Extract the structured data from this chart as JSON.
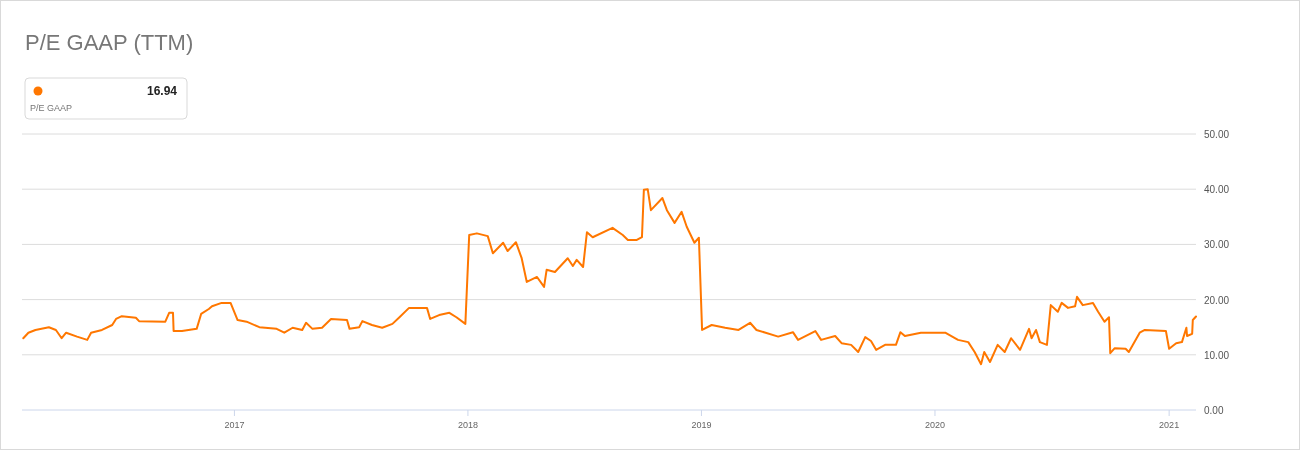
{
  "chart_data": {
    "type": "line",
    "title": "P/E GAAP (TTM)",
    "annotations": [
      "16.94"
    ],
    "xlim": [
      "2016-02-04",
      "2021-02-12"
    ],
    "xticks": [
      "2017",
      "2018",
      "2019",
      "2020",
      "2021"
    ],
    "ylim": [
      0,
      50
    ],
    "yticks": [
      {
        "value": 0,
        "label": "0.00"
      },
      {
        "value": 10,
        "label": "10.00"
      },
      {
        "value": 20,
        "label": "20.00"
      },
      {
        "value": 30,
        "label": "30.00"
      },
      {
        "value": 40,
        "label": "40.00"
      },
      {
        "value": 50,
        "label": "50.00"
      }
    ],
    "grid": "y",
    "legend": "top left",
    "marker": "none",
    "line_style": "solid",
    "series": [
      {
        "name": "P/E GAAP",
        "color": "#ff7700",
        "x": [
          "2016-02-06",
          "2016-02-14",
          "2016-02-25",
          "2016-03-17",
          "2016-03-28",
          "2016-04-06",
          "2016-04-13",
          "2016-04-30",
          "2016-05-16",
          "2016-05-22",
          "2016-06-08",
          "2016-06-24",
          "2016-06-30",
          "2016-07-09",
          "2016-07-31",
          "2016-08-05",
          "2016-09-15",
          "2016-09-21",
          "2016-09-27",
          "2016-09-28",
          "2016-10-11",
          "2016-11-03",
          "2016-11-10",
          "2016-11-22",
          "2016-11-27",
          "2016-12-12",
          "2016-12-26",
          "2017-01-06",
          "2017-01-20",
          "2017-02-09",
          "2017-03-08",
          "2017-03-20",
          "2017-04-02",
          "2017-04-17",
          "2017-04-23",
          "2017-05-03",
          "2017-05-18",
          "2017-06-01",
          "2017-06-26",
          "2017-06-30",
          "2017-07-15",
          "2017-07-20",
          "2017-08-04",
          "2017-08-20",
          "2017-09-05",
          "2017-09-16",
          "2017-10-01",
          "2017-10-29",
          "2017-11-03",
          "2017-11-17",
          "2017-12-03",
          "2017-12-14",
          "2017-12-28",
          "2018-01-03",
          "2018-01-15",
          "2018-02-01",
          "2018-02-09",
          "2018-02-25",
          "2018-03-04",
          "2018-03-17",
          "2018-03-26",
          "2018-04-03",
          "2018-04-19",
          "2018-04-30",
          "2018-05-04",
          "2018-05-17",
          "2018-06-06",
          "2018-06-14",
          "2018-06-20",
          "2018-06-30",
          "2018-07-06",
          "2018-07-15",
          "2018-08-15",
          "2018-08-31",
          "2018-09-08",
          "2018-09-22",
          "2018-09-30",
          "2018-10-03",
          "2018-10-09",
          "2018-10-14",
          "2018-11-01",
          "2018-11-08",
          "2018-11-20",
          "2018-12-01",
          "2018-12-09",
          "2018-12-21",
          "2018-12-28",
          "2019-01-02",
          "2019-01-17",
          "2019-02-07",
          "2019-02-28",
          "2019-03-18",
          "2019-03-28",
          "2019-05-01",
          "2019-05-24",
          "2019-06-01",
          "2019-06-28",
          "2019-07-07",
          "2019-07-29",
          "2019-08-08",
          "2019-08-23",
          "2019-09-03",
          "2019-09-14",
          "2019-09-23",
          "2019-10-01",
          "2019-10-15",
          "2019-11-01",
          "2019-11-08",
          "2019-11-15",
          "2019-12-10",
          "2020-01-17",
          "2020-02-06",
          "2020-02-22",
          "2020-03-03",
          "2020-03-13",
          "2020-03-18",
          "2020-03-27",
          "2020-04-08",
          "2020-04-19",
          "2020-04-29",
          "2020-05-13",
          "2020-05-27",
          "2020-05-31",
          "2020-06-07",
          "2020-06-13",
          "2020-06-24",
          "2020-06-30",
          "2020-07-11",
          "2020-07-17",
          "2020-07-27",
          "2020-08-07",
          "2020-08-10",
          "2020-08-19",
          "2020-09-04",
          "2020-09-12",
          "2020-09-22",
          "2020-09-29",
          "2020-10-01",
          "2020-10-08",
          "2020-10-25",
          "2020-10-30",
          "2020-11-16",
          "2020-11-24",
          "2020-12-27",
          "2021-01-01",
          "2021-01-12",
          "2021-01-21",
          "2021-01-28",
          "2021-01-29",
          "2021-02-06",
          "2021-02-07",
          "2021-02-12"
        ],
        "values": [
          13.0,
          14.0,
          14.5,
          15.0,
          14.5,
          13.0,
          14.0,
          13.3,
          12.7,
          14.0,
          14.5,
          15.4,
          16.5,
          17.0,
          16.7,
          16.1,
          16.0,
          17.6,
          17.6,
          14.3,
          14.3,
          14.7,
          17.4,
          18.3,
          18.8,
          19.4,
          19.4,
          16.3,
          16.0,
          15.0,
          14.7,
          14.0,
          14.9,
          14.5,
          15.8,
          14.7,
          14.9,
          16.5,
          16.3,
          14.7,
          15.0,
          16.1,
          15.4,
          14.9,
          15.6,
          16.8,
          18.5,
          18.5,
          16.5,
          17.2,
          17.6,
          16.8,
          15.6,
          31.7,
          32.0,
          31.5,
          28.4,
          30.3,
          28.8,
          30.4,
          27.5,
          23.2,
          24.1,
          22.3,
          25.4,
          25.0,
          27.5,
          26.1,
          27.2,
          25.9,
          32.2,
          31.3,
          33.0,
          31.7,
          30.8,
          30.8,
          31.3,
          39.9,
          40.0,
          36.2,
          38.4,
          36.2,
          33.9,
          35.9,
          33.2,
          30.3,
          31.2,
          14.5,
          15.4,
          14.9,
          14.5,
          15.8,
          14.5,
          13.3,
          14.1,
          12.7,
          14.3,
          12.7,
          13.4,
          12.1,
          11.8,
          10.5,
          13.2,
          12.5,
          10.9,
          11.8,
          11.8,
          14.1,
          13.4,
          14.0,
          14.0,
          12.7,
          12.3,
          10.5,
          8.3,
          10.5,
          8.7,
          11.8,
          10.5,
          13.0,
          10.9,
          14.7,
          13.0,
          14.5,
          12.3,
          11.8,
          19.0,
          17.8,
          19.4,
          18.5,
          18.8,
          20.5,
          19.0,
          19.4,
          17.8,
          16.0,
          16.8,
          10.3,
          11.2,
          11.1,
          10.5,
          14.0,
          14.5,
          14.3,
          11.1,
          12.1,
          12.3,
          14.9,
          13.4,
          13.8,
          16.3,
          16.94
        ]
      }
    ]
  }
}
